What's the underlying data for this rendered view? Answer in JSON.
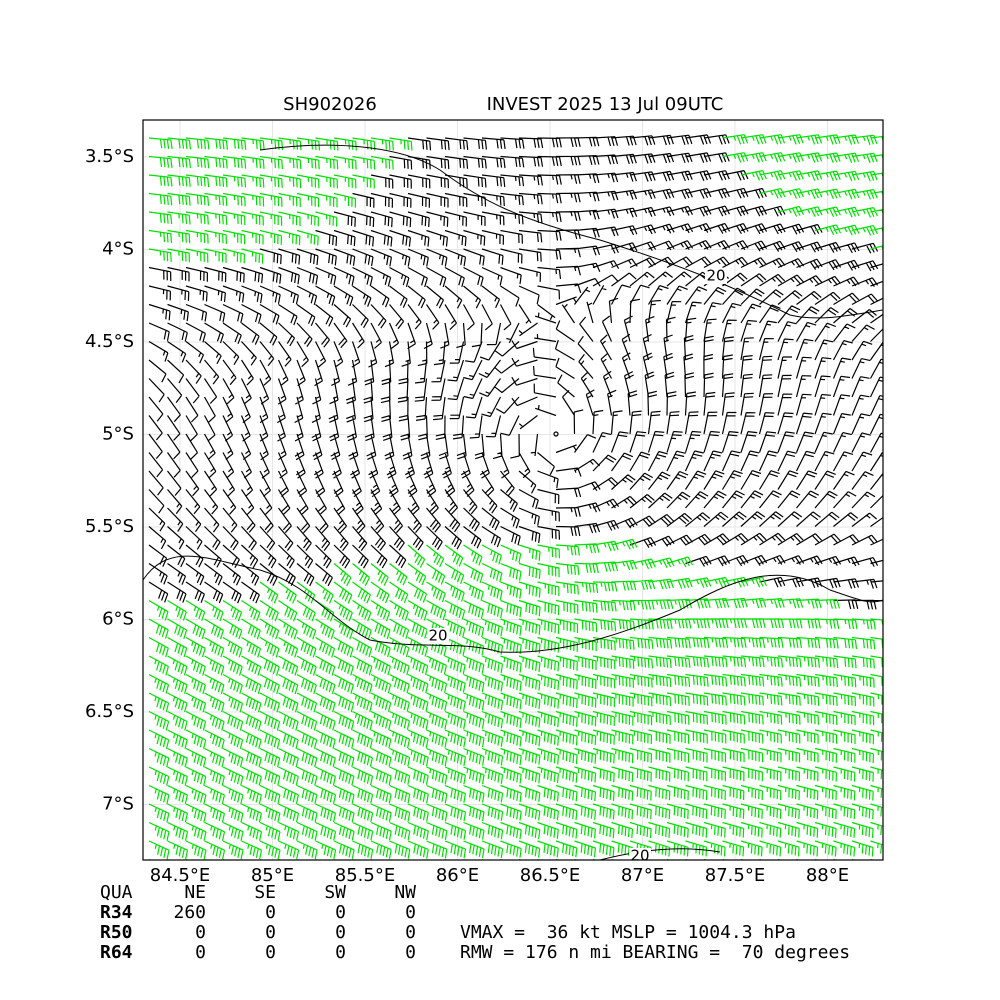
{
  "chart_data": {
    "type": "wind_barbs",
    "title_left": "SH902026",
    "title_right": "INVEST 2025 13 Jul 09UTC",
    "xlim": [
      84.3,
      88.3
    ],
    "ylim": [
      -7.3,
      -3.3
    ],
    "xticks": [
      {
        "value": 84.5,
        "label": "84.5°E"
      },
      {
        "value": 85,
        "label": "85°E"
      },
      {
        "value": 85.5,
        "label": "85.5°E"
      },
      {
        "value": 86,
        "label": "86°E"
      },
      {
        "value": 86.5,
        "label": "86.5°E"
      },
      {
        "value": 87,
        "label": "87°E"
      },
      {
        "value": 87.5,
        "label": "87.5°E"
      },
      {
        "value": 88,
        "label": "88°E"
      }
    ],
    "yticks": [
      {
        "value": -3.5,
        "label": "3.5°S"
      },
      {
        "value": -4,
        "label": "4°S"
      },
      {
        "value": -4.5,
        "label": "4.5°S"
      },
      {
        "value": -5,
        "label": "5°S"
      },
      {
        "value": -5.5,
        "label": "5.5°S"
      },
      {
        "value": -6,
        "label": "6°S"
      },
      {
        "value": -6.5,
        "label": "6.5°S"
      },
      {
        "value": -7,
        "label": "7°S"
      }
    ],
    "grid": true,
    "contour_labels": [
      "20",
      "20",
      "20"
    ]
  },
  "table": {
    "header": [
      "QUA",
      "NE",
      "SE",
      "SW",
      "NW"
    ],
    "rows": [
      [
        "R34",
        "260",
        "0",
        "0",
        "0"
      ],
      [
        "R50",
        "0",
        "0",
        "0",
        "0"
      ],
      [
        "R64",
        "0",
        "0",
        "0",
        "0"
      ]
    ]
  },
  "summary": [
    "VMAX =  36 kt MSLP = 1004.3 hPa",
    "RMW = 176 n mi BEARING =  70 degrees"
  ]
}
